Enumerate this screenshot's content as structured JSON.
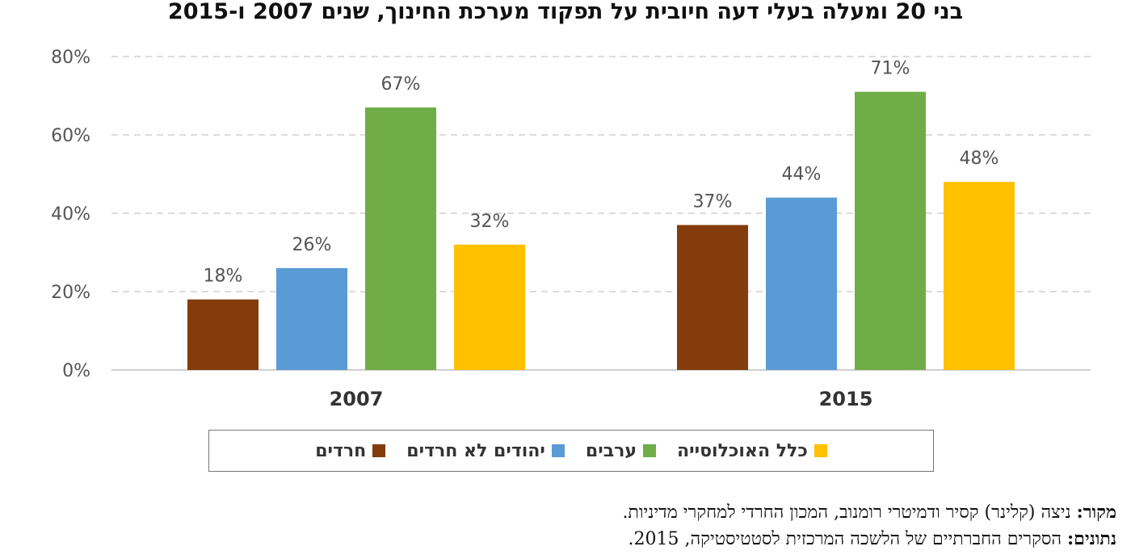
{
  "chart_data": {
    "type": "bar",
    "title": "בני 20 ומעלה בעלי דעה חיובית על תפקוד מערכת החינוך, שנים 2007 ו-2015",
    "categories": [
      "2007",
      "2015"
    ],
    "series": [
      {
        "name": "חרדים",
        "color": "#843c0c",
        "values": [
          18,
          37
        ],
        "labels": [
          "18%",
          "37%"
        ]
      },
      {
        "name": "יהודים לא חרדים",
        "color": "#5b9bd5",
        "values": [
          26,
          44
        ],
        "labels": [
          "26%",
          "44%"
        ]
      },
      {
        "name": "ערבים",
        "color": "#70ad47",
        "values": [
          67,
          71
        ],
        "labels": [
          "67%",
          "71%"
        ]
      },
      {
        "name": "כלל האוכלוסייה",
        "color": "#ffc000",
        "values": [
          32,
          48
        ],
        "labels": [
          "32%",
          "48%"
        ]
      }
    ],
    "ylim": [
      0,
      80
    ],
    "yticks": [
      "0%",
      "20%",
      "40%",
      "60%",
      "80%"
    ],
    "grid": true,
    "legend": "bottom"
  },
  "source": {
    "source_label": "מקור:",
    "source_text": "ניצה (קלינר) קסיר ודמיטרי רומנוב, המכון החרדי למחקרי מדיניות.",
    "data_label": "נתונים:",
    "data_text": "הסקרים החברתיים של הלשכה המרכזית לסטטיסטיקה, 2015."
  }
}
